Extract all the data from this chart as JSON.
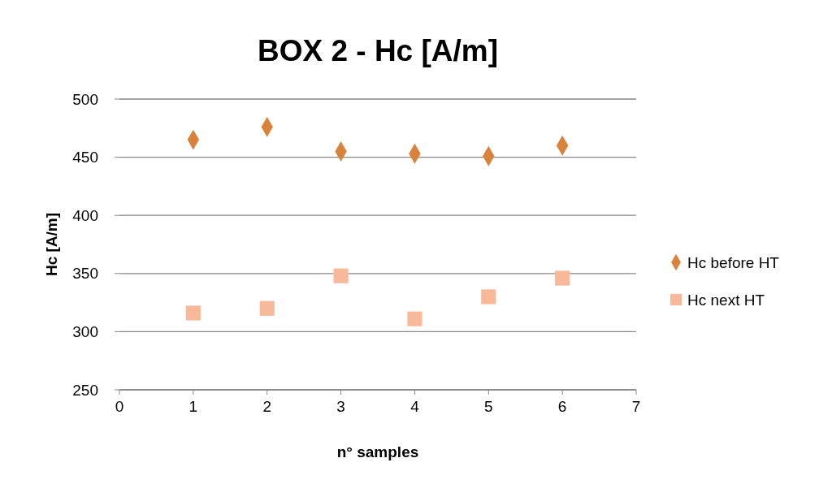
{
  "chart_data": {
    "type": "scatter",
    "title": "BOX 2 - Hc [A/m]",
    "xlabel": "n° samples",
    "ylabel": "Hc [A/m]",
    "x": [
      1,
      2,
      3,
      4,
      5,
      6
    ],
    "series": [
      {
        "name": "Hc before HT",
        "color": "#d9823b",
        "marker": "diamond",
        "values": [
          465,
          476,
          455,
          453,
          451,
          460
        ]
      },
      {
        "name": "Hc next HT",
        "color": "#f7b999",
        "marker": "square",
        "values": [
          316,
          320,
          348,
          311,
          330,
          346
        ]
      }
    ],
    "xlim": [
      0,
      7
    ],
    "xticks": [
      0,
      1,
      2,
      3,
      4,
      5,
      6,
      7
    ],
    "ylim": [
      250,
      500
    ],
    "yticks": [
      250,
      300,
      350,
      400,
      450,
      500
    ],
    "grid": "y",
    "legend": "right"
  }
}
